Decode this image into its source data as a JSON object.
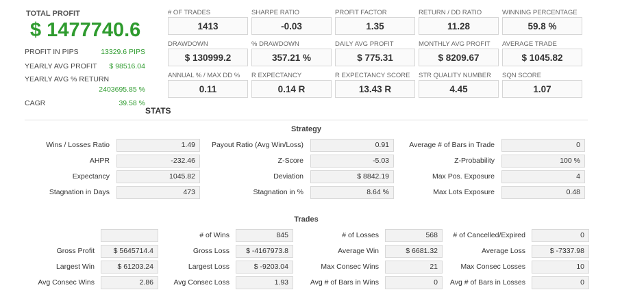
{
  "summary": {
    "total_profit_label": "TOTAL PROFIT",
    "total_profit_value": "$ 1477740.6",
    "rows": [
      {
        "label": "PROFIT IN PIPS",
        "value": "13329.6 PIPS"
      },
      {
        "label": "YEARLY AVG PROFIT",
        "value": "$ 98516.04"
      },
      {
        "label": "YEARLY AVG % RETURN",
        "value": "2403695.85 %"
      },
      {
        "label": "CAGR",
        "value": "39.58 %"
      }
    ]
  },
  "metrics": [
    {
      "label": "# OF TRADES",
      "value": "1413"
    },
    {
      "label": "SHARPE RATIO",
      "value": "-0.03"
    },
    {
      "label": "PROFIT FACTOR",
      "value": "1.35"
    },
    {
      "label": "RETURN / DD RATIO",
      "value": "11.28"
    },
    {
      "label": "WINNING PERCENTAGE",
      "value": "59.8 %"
    },
    {
      "label": "DRAWDOWN",
      "value": "$ 130999.2"
    },
    {
      "label": "% DRAWDOWN",
      "value": "357.21 %"
    },
    {
      "label": "DAILY AVG PROFIT",
      "value": "$ 775.31"
    },
    {
      "label": "MONTHLY AVG PROFIT",
      "value": "$ 8209.67"
    },
    {
      "label": "AVERAGE TRADE",
      "value": "$ 1045.82"
    },
    {
      "label": "ANNUAL % / MAX DD %",
      "value": "0.11"
    },
    {
      "label": "R EXPECTANCY",
      "value": "0.14 R"
    },
    {
      "label": "R EXPECTANCY SCORE",
      "value": "13.43 R"
    },
    {
      "label": "STR QUALITY NUMBER",
      "value": "4.45"
    },
    {
      "label": "SQN SCORE",
      "value": "1.07"
    }
  ],
  "stats_title": "STATS",
  "strategy": {
    "title": "Strategy",
    "rows": [
      [
        {
          "label": "Wins / Losses Ratio",
          "value": "1.49"
        },
        {
          "label": "Payout Ratio (Avg Win/Loss)",
          "value": "0.91"
        },
        {
          "label": "Average # of Bars in Trade",
          "value": "0"
        }
      ],
      [
        {
          "label": "AHPR",
          "value": "-232.46"
        },
        {
          "label": "Z-Score",
          "value": "-5.03"
        },
        {
          "label": "Z-Probability",
          "value": "100 %"
        }
      ],
      [
        {
          "label": "Expectancy",
          "value": "1045.82"
        },
        {
          "label": "Deviation",
          "value": "$ 8842.19"
        },
        {
          "label": "Max Pos. Exposure",
          "value": "4"
        }
      ],
      [
        {
          "label": "Stagnation in Days",
          "value": "473"
        },
        {
          "label": "Stagnation in %",
          "value": "8.64 %"
        },
        {
          "label": "Max Lots Exposure",
          "value": "0.48"
        }
      ]
    ]
  },
  "trades": {
    "title": "Trades",
    "rows": [
      [
        {
          "label": "",
          "value": ""
        },
        {
          "label": "# of Wins",
          "value": "845"
        },
        {
          "label": "# of Losses",
          "value": "568"
        },
        {
          "label": "# of Cancelled/Expired",
          "value": "0"
        }
      ],
      [
        {
          "label": "Gross Profit",
          "value": "$ 5645714.4"
        },
        {
          "label": "Gross Loss",
          "value": "$ -4167973.8"
        },
        {
          "label": "Average Win",
          "value": "$ 6681.32"
        },
        {
          "label": "Average Loss",
          "value": "$ -7337.98"
        }
      ],
      [
        {
          "label": "Largest Win",
          "value": "$ 61203.24"
        },
        {
          "label": "Largest Loss",
          "value": "$ -9203.04"
        },
        {
          "label": "Max Consec Wins",
          "value": "21"
        },
        {
          "label": "Max Consec Losses",
          "value": "10"
        }
      ],
      [
        {
          "label": "Avg Consec Wins",
          "value": "2.86"
        },
        {
          "label": "Avg Consec Loss",
          "value": "1.93"
        },
        {
          "label": "Avg # of Bars in Wins",
          "value": "0"
        },
        {
          "label": "Avg # of Bars in Losses",
          "value": "0"
        }
      ]
    ]
  }
}
